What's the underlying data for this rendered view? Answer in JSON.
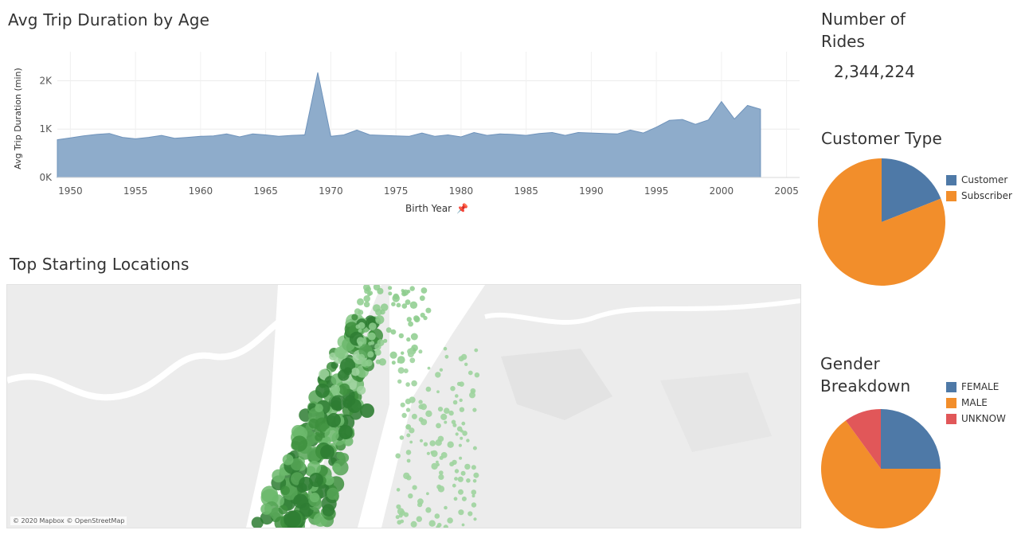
{
  "area_chart": {
    "title": "Avg Trip Duration by Age",
    "xlabel": "Birth Year",
    "ylabel": "Avg Trip Duration (min)",
    "x_ticks": [
      "1950",
      "1955",
      "1960",
      "1965",
      "1970",
      "1975",
      "1980",
      "1985",
      "1990",
      "1995",
      "2000",
      "2005"
    ],
    "y_ticks": [
      "0K",
      "1K",
      "2K"
    ],
    "fill_color": "#8eaccb",
    "stroke_color": "#6f93bb"
  },
  "map": {
    "title": "Top Starting Locations",
    "attribution": "© 2020 Mapbox © OpenStreetMap",
    "point_color": "#4f9e4f"
  },
  "kpi": {
    "title": "Number of Rides",
    "value": "2,344,224"
  },
  "customer_type": {
    "title": "Customer Type",
    "legend": [
      {
        "label": "Customer",
        "color": "#4e79a7"
      },
      {
        "label": "Subscriber",
        "color": "#f28e2b"
      }
    ]
  },
  "gender": {
    "title": "Gender Breakdown",
    "legend": [
      {
        "label": "FEMALE",
        "color": "#4e79a7"
      },
      {
        "label": "MALE",
        "color": "#f28e2b"
      },
      {
        "label": "UNKNOW",
        "color": "#e15759"
      }
    ]
  },
  "chart_data": [
    {
      "type": "area",
      "title": "Avg Trip Duration by Age",
      "xlabel": "Birth Year",
      "ylabel": "Avg Trip Duration (min)",
      "xlim": [
        1949,
        2006
      ],
      "ylim": [
        0,
        2600
      ],
      "x": [
        1949,
        1950,
        1951,
        1952,
        1953,
        1954,
        1955,
        1956,
        1957,
        1958,
        1959,
        1960,
        1961,
        1962,
        1963,
        1964,
        1965,
        1966,
        1967,
        1968,
        1969,
        1970,
        1971,
        1972,
        1973,
        1974,
        1975,
        1976,
        1977,
        1978,
        1979,
        1980,
        1981,
        1982,
        1983,
        1984,
        1985,
        1986,
        1987,
        1988,
        1989,
        1990,
        1991,
        1992,
        1993,
        1994,
        1995,
        1996,
        1997,
        1998,
        1999,
        2000,
        2001,
        2002,
        2003
      ],
      "y": [
        780,
        820,
        860,
        890,
        910,
        830,
        800,
        830,
        870,
        810,
        830,
        850,
        860,
        900,
        840,
        900,
        880,
        850,
        870,
        880,
        2170,
        850,
        880,
        980,
        880,
        870,
        860,
        850,
        920,
        850,
        880,
        840,
        930,
        870,
        900,
        890,
        870,
        910,
        930,
        870,
        930,
        920,
        910,
        900,
        980,
        920,
        1040,
        1180,
        1200,
        1100,
        1190,
        1570,
        1210,
        1490,
        1410
      ],
      "grid": true
    },
    {
      "type": "pie",
      "title": "Customer Type",
      "categories": [
        "Customer",
        "Subscriber"
      ],
      "values": [
        19,
        81
      ]
    },
    {
      "type": "pie",
      "title": "Gender Breakdown",
      "categories": [
        "FEMALE",
        "MALE",
        "UNKNOW"
      ],
      "values": [
        25,
        65,
        10
      ]
    }
  ]
}
